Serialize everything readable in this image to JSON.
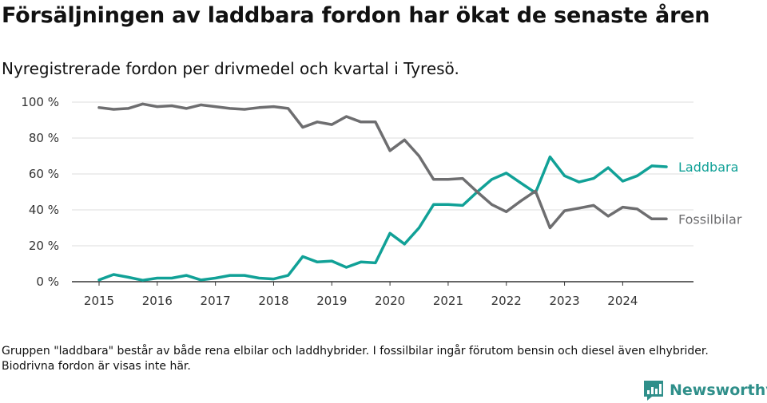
{
  "title": "Försäljningen av laddbara fordon har ökat de senaste åren",
  "subtitle": "Nyregistrerade fordon per drivmedel och kvartal i Tyresö.",
  "note": "Gruppen \"laddbara\" består av både rena elbilar och laddhybrider. I fossilbilar ingår förutom bensin och diesel även elhybrider. Biodrivna fordon är visas inte här.",
  "brand": "Newsworthy",
  "chart_data": {
    "type": "line",
    "title": "Försäljningen av laddbara fordon har ökat de senaste åren",
    "xlabel": "",
    "ylabel": "",
    "ylim": [
      0,
      100
    ],
    "x_range": [
      2015,
      2024.75
    ],
    "yticks": [
      0,
      20,
      40,
      60,
      80,
      100
    ],
    "ytick_labels": [
      "0 %",
      "20 %",
      "40 %",
      "60 %",
      "80 %",
      "100 %"
    ],
    "xticks": [
      2015,
      2016,
      2017,
      2018,
      2019,
      2020,
      2021,
      2022,
      2023,
      2024
    ],
    "xtick_labels": [
      "2015",
      "2016",
      "2017",
      "2018",
      "2019",
      "2020",
      "2021",
      "2022",
      "2023",
      "2024"
    ],
    "grid": true,
    "x": [
      2015,
      2015.25,
      2015.5,
      2015.75,
      2016,
      2016.25,
      2016.5,
      2016.75,
      2017,
      2017.25,
      2017.5,
      2017.75,
      2018,
      2018.25,
      2018.5,
      2018.75,
      2019,
      2019.25,
      2019.5,
      2019.75,
      2020,
      2020.25,
      2020.5,
      2020.75,
      2021,
      2021.25,
      2021.5,
      2021.75,
      2022,
      2022.25,
      2022.5,
      2022.75,
      2023,
      2023.25,
      2023.5,
      2023.75,
      2024,
      2024.25,
      2024.5,
      2024.75
    ],
    "series": [
      {
        "name": "Laddbara",
        "color": "#11a197",
        "values": [
          1,
          4,
          2.5,
          0.8,
          2,
          2,
          3.5,
          1,
          2,
          3.5,
          3.5,
          2,
          1.5,
          3.5,
          14,
          11,
          11.5,
          8,
          11,
          10.5,
          27,
          21,
          30,
          43,
          43,
          42.5,
          50,
          57,
          60.5,
          55,
          49.5,
          69.5,
          59,
          55.5,
          57.5,
          63.5,
          56,
          59,
          64.5,
          64
        ]
      },
      {
        "name": "Fossilbilar",
        "color": "#6e6e70",
        "values": [
          97,
          96,
          96.5,
          99,
          97.5,
          98,
          96.5,
          98.5,
          97.5,
          96.5,
          96,
          97,
          97.5,
          96.5,
          86,
          89,
          87.5,
          92,
          89,
          89,
          73,
          79,
          70,
          57,
          57,
          57.5,
          50,
          43,
          39,
          45,
          50.5,
          30,
          39.5,
          41,
          42.5,
          36.5,
          41.5,
          40.5,
          35,
          35
        ]
      }
    ]
  }
}
